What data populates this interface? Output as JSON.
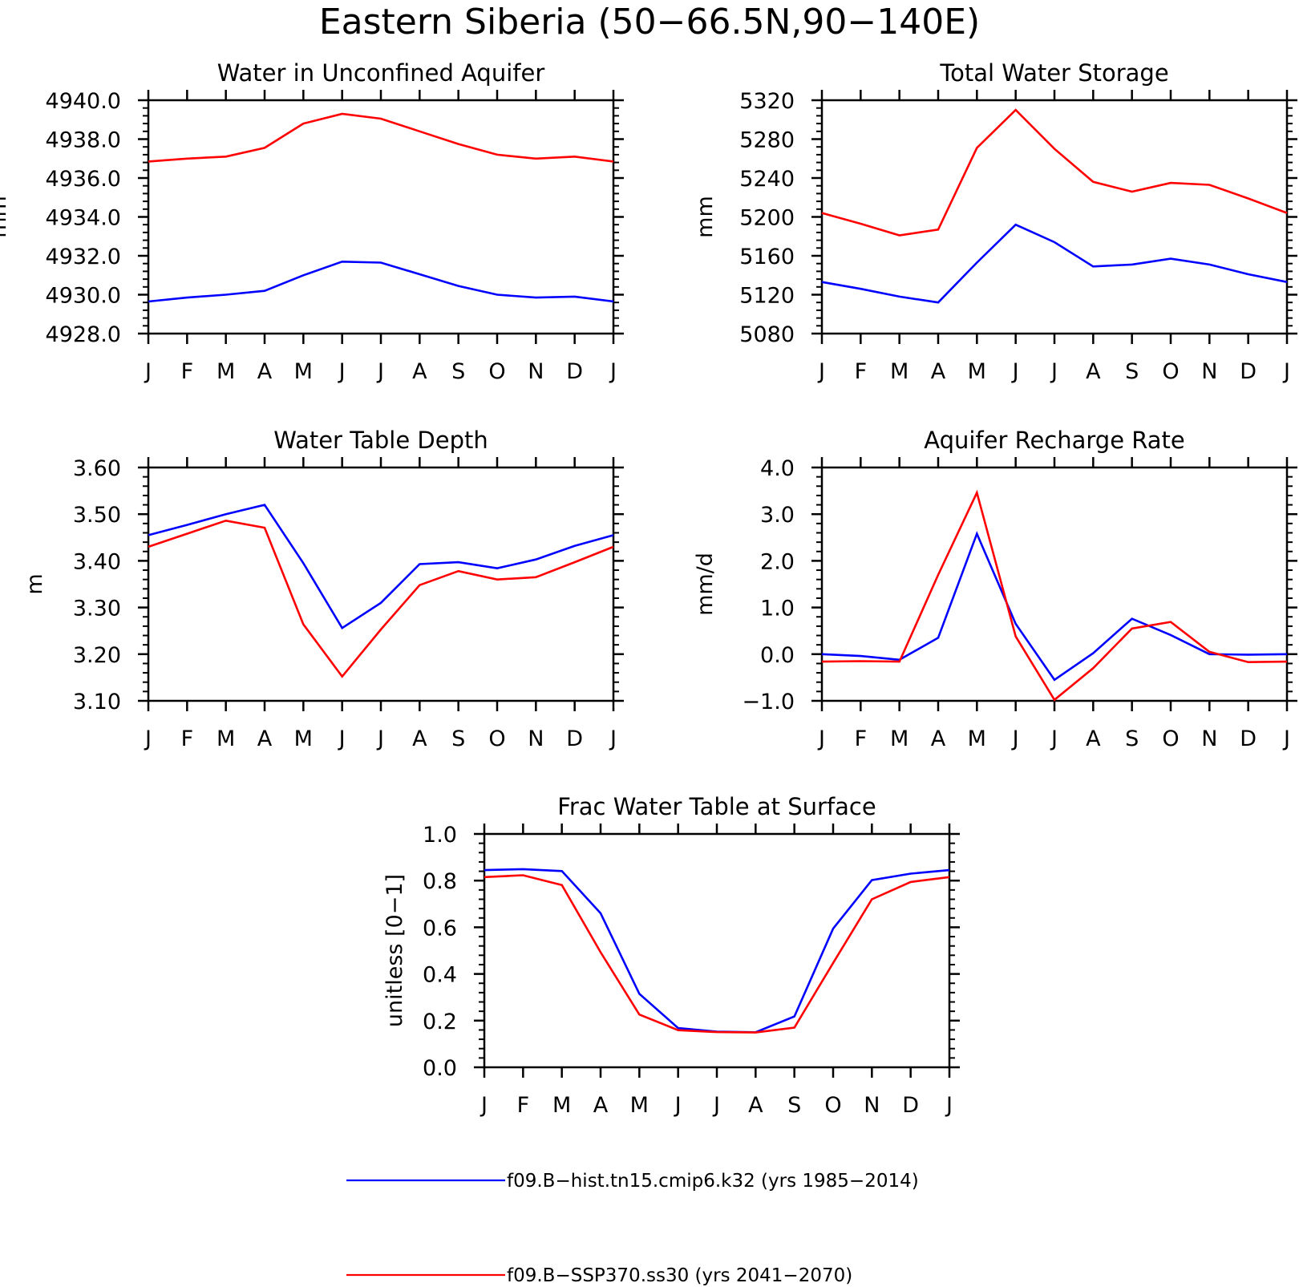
{
  "figure_title": "Eastern Siberia (50−66.5N,90−140E)",
  "colors": {
    "series_1": "#0000ff",
    "series_2": "#ff0000",
    "axis": "#000000"
  },
  "legend": [
    {
      "label": "f09.B−hist.tn15.cmip6.k32 (yrs 1985−2014)",
      "color": "#0000ff"
    },
    {
      "label": "f09.B−SSP370.ss30 (yrs 2041−2070)",
      "color": "#ff0000"
    }
  ],
  "chart_data": [
    {
      "type": "line",
      "title": "Water in Unconfined Aquifer",
      "ylabel": "mm",
      "xlabel": "",
      "x": [
        "J",
        "F",
        "M",
        "A",
        "M",
        "J",
        "J",
        "A",
        "S",
        "O",
        "N",
        "D",
        "J"
      ],
      "ylim": [
        4928.0,
        4940.0
      ],
      "yticks": [
        4928.0,
        4930.0,
        4932.0,
        4934.0,
        4936.0,
        4938.0,
        4940.0
      ],
      "ytick_labels": [
        "4928.0",
        "4930.0",
        "4932.0",
        "4934.0",
        "4936.0",
        "4938.0",
        "4940.0"
      ],
      "series": [
        {
          "color": "#0000ff",
          "values": [
            4929.65,
            4929.85,
            4930.0,
            4930.2,
            4931.0,
            4931.7,
            4931.65,
            4931.05,
            4930.45,
            4930.0,
            4929.85,
            4929.9,
            4929.65
          ]
        },
        {
          "color": "#ff0000",
          "values": [
            4936.85,
            4937.0,
            4937.1,
            4937.55,
            4938.8,
            4939.3,
            4939.05,
            4938.4,
            4937.75,
            4937.2,
            4937.0,
            4937.1,
            4936.85
          ]
        }
      ]
    },
    {
      "type": "line",
      "title": "Total Water Storage",
      "ylabel": "mm",
      "xlabel": "",
      "x": [
        "J",
        "F",
        "M",
        "A",
        "M",
        "J",
        "J",
        "A",
        "S",
        "O",
        "N",
        "D",
        "J"
      ],
      "ylim": [
        5080,
        5320
      ],
      "yticks": [
        5080,
        5120,
        5160,
        5200,
        5240,
        5280,
        5320
      ],
      "ytick_labels": [
        "5080",
        "5120",
        "5160",
        "5200",
        "5240",
        "5280",
        "5320"
      ],
      "series": [
        {
          "color": "#0000ff",
          "values": [
            5133,
            5126,
            5118,
            5112,
            5153,
            5192,
            5174,
            5149,
            5151,
            5157,
            5151,
            5141,
            5133
          ]
        },
        {
          "color": "#ff0000",
          "values": [
            5204,
            5193,
            5181,
            5187,
            5271,
            5310,
            5270,
            5236,
            5226,
            5235,
            5233,
            5219,
            5204
          ]
        }
      ]
    },
    {
      "type": "line",
      "title": "Water Table Depth",
      "ylabel": "m",
      "xlabel": "",
      "x": [
        "J",
        "F",
        "M",
        "A",
        "M",
        "J",
        "J",
        "A",
        "S",
        "O",
        "N",
        "D",
        "J"
      ],
      "ylim": [
        3.1,
        3.6
      ],
      "yticks": [
        3.1,
        3.2,
        3.3,
        3.4,
        3.5,
        3.6
      ],
      "ytick_labels": [
        "3.10",
        "3.20",
        "3.30",
        "3.40",
        "3.50",
        "3.60"
      ],
      "series": [
        {
          "color": "#0000ff",
          "values": [
            3.455,
            3.477,
            3.5,
            3.52,
            3.395,
            3.256,
            3.31,
            3.393,
            3.397,
            3.384,
            3.403,
            3.432,
            3.455
          ]
        },
        {
          "color": "#ff0000",
          "values": [
            3.43,
            3.458,
            3.486,
            3.471,
            3.264,
            3.152,
            3.253,
            3.348,
            3.378,
            3.36,
            3.365,
            3.397,
            3.43
          ]
        }
      ]
    },
    {
      "type": "line",
      "title": "Aquifer Recharge Rate",
      "ylabel": "mm/d",
      "xlabel": "",
      "x": [
        "J",
        "F",
        "M",
        "A",
        "M",
        "J",
        "J",
        "A",
        "S",
        "O",
        "N",
        "D",
        "J"
      ],
      "ylim": [
        -1.0,
        4.0
      ],
      "yticks": [
        -1.0,
        0.0,
        1.0,
        2.0,
        3.0,
        4.0
      ],
      "ytick_labels": [
        "−1.0",
        "0.0",
        "1.0",
        "2.0",
        "3.0",
        "4.0"
      ],
      "series": [
        {
          "color": "#0000ff",
          "values": [
            0.0,
            -0.04,
            -0.12,
            0.35,
            2.58,
            0.65,
            -0.55,
            0.02,
            0.76,
            0.41,
            0.0,
            -0.01,
            0.0
          ]
        },
        {
          "color": "#ff0000",
          "values": [
            -0.16,
            -0.15,
            -0.16,
            1.7,
            3.46,
            0.38,
            -0.98,
            -0.3,
            0.55,
            0.69,
            0.05,
            -0.17,
            -0.16
          ]
        }
      ]
    },
    {
      "type": "line",
      "title": "Frac Water Table at Surface",
      "ylabel": "unitless [0−1]",
      "xlabel": "",
      "x": [
        "J",
        "F",
        "M",
        "A",
        "M",
        "J",
        "J",
        "A",
        "S",
        "O",
        "N",
        "D",
        "J"
      ],
      "ylim": [
        0.0,
        1.0
      ],
      "yticks": [
        0.0,
        0.2,
        0.4,
        0.6,
        0.8,
        1.0
      ],
      "ytick_labels": [
        "0.0",
        "0.2",
        "0.4",
        "0.6",
        "0.8",
        "1.0"
      ],
      "series": [
        {
          "color": "#0000ff",
          "values": [
            0.845,
            0.849,
            0.841,
            0.66,
            0.315,
            0.168,
            0.153,
            0.15,
            0.218,
            0.594,
            0.802,
            0.83,
            0.845
          ]
        },
        {
          "color": "#ff0000",
          "values": [
            0.815,
            0.823,
            0.781,
            0.493,
            0.226,
            0.159,
            0.151,
            0.149,
            0.17,
            0.447,
            0.72,
            0.794,
            0.815
          ]
        }
      ]
    }
  ]
}
